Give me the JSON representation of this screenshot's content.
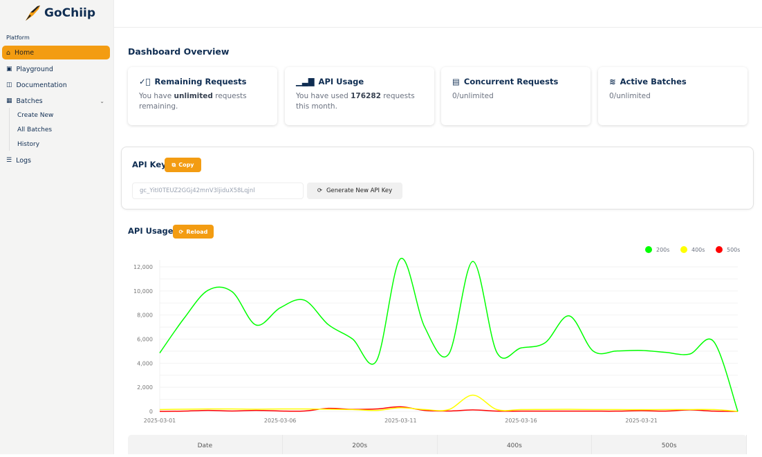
{
  "brand": {
    "name": "GoChiip"
  },
  "sidebar": {
    "section": "Platform",
    "items": [
      {
        "label": "Home",
        "icon": "home-icon",
        "active": true
      },
      {
        "label": "Playground",
        "icon": "terminal-icon"
      },
      {
        "label": "Documentation",
        "icon": "book-open-icon"
      },
      {
        "label": "Batches",
        "icon": "batches-icon"
      },
      {
        "label": "Logs",
        "icon": "list-icon"
      }
    ],
    "batches_sub": [
      "Create New",
      "All Batches",
      "History"
    ]
  },
  "page": {
    "title": "Dashboard Overview"
  },
  "cards": [
    {
      "title": "Remaining Requests",
      "icon": "check-circle-icon",
      "pre": "You have ",
      "bold": "unlimited",
      "post": " requests remaining."
    },
    {
      "title": "API Usage",
      "icon": "bar-chart-icon",
      "pre": "You have used ",
      "bold": "176282",
      "post": " requests this month."
    },
    {
      "title": "Concurrent Requests",
      "icon": "calendar-icon",
      "pre": "0/unlimited",
      "bold": "",
      "post": ""
    },
    {
      "title": "Active Batches",
      "icon": "layers-icon",
      "pre": "0/unlimited",
      "bold": "",
      "post": ""
    }
  ],
  "api_key": {
    "title": "API Key",
    "copy": "Copy",
    "value": "gc_YitI0TEUZ2GGj42mnV3ljiduX58Lqjnl",
    "generate": "Generate New API Key"
  },
  "usage": {
    "title": "API Usage",
    "reload": "Reload"
  },
  "table": {
    "headers": [
      "Date",
      "200s",
      "400s",
      "500s"
    ]
  },
  "chart_data": {
    "type": "line",
    "x": [
      "2025-03-01",
      "2025-03-02",
      "2025-03-03",
      "2025-03-04",
      "2025-03-05",
      "2025-03-06",
      "2025-03-07",
      "2025-03-08",
      "2025-03-09",
      "2025-03-10",
      "2025-03-11",
      "2025-03-12",
      "2025-03-13",
      "2025-03-14",
      "2025-03-15",
      "2025-03-16",
      "2025-03-17",
      "2025-03-18",
      "2025-03-19",
      "2025-03-20",
      "2025-03-21",
      "2025-03-22",
      "2025-03-23",
      "2025-03-24",
      "2025-03-25"
    ],
    "xticks": [
      "2025-03-01",
      "2025-03-06",
      "2025-03-11",
      "2025-03-16",
      "2025-03-21"
    ],
    "yticks": [
      "0",
      "2,000",
      "4,000",
      "6,000",
      "8,000",
      "10,000",
      "12,000"
    ],
    "ylim": [
      0,
      12000
    ],
    "grid": true,
    "legend": "top-right",
    "series": [
      {
        "name": "200s",
        "color": "#00ff00",
        "values": [
          4850,
          7700,
          10050,
          9950,
          7170,
          8600,
          9240,
          7200,
          6020,
          4200,
          12680,
          7000,
          4760,
          12450,
          4880,
          5270,
          5700,
          7930,
          5000,
          5020,
          5060,
          4900,
          4760,
          5800,
          0
        ]
      },
      {
        "name": "400s",
        "color": "#ffff00",
        "values": [
          150,
          180,
          200,
          200,
          180,
          200,
          200,
          180,
          150,
          80,
          300,
          150,
          150,
          1350,
          150,
          150,
          160,
          170,
          150,
          150,
          140,
          150,
          150,
          150,
          0
        ]
      },
      {
        "name": "500s",
        "color": "#ff0000",
        "values": [
          0,
          20,
          80,
          30,
          80,
          30,
          30,
          250,
          170,
          200,
          380,
          80,
          30,
          120,
          20,
          20,
          20,
          20,
          20,
          20,
          60,
          20,
          120,
          20,
          0
        ]
      }
    ]
  }
}
